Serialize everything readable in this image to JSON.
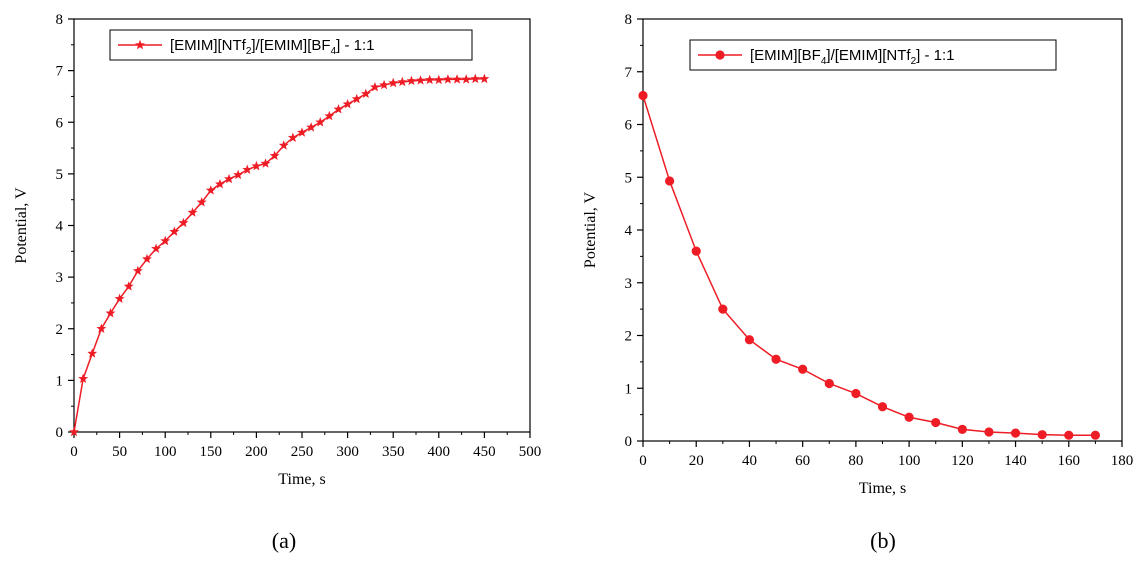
{
  "colors": {
    "series": "#ee1c25",
    "axis": "#000000",
    "background": "#ffffff"
  },
  "chart_data": [
    {
      "type": "line",
      "panel_label": "(a)",
      "xlabel": "Time, s",
      "ylabel": "Potential, V",
      "xlim": [
        0,
        500
      ],
      "ylim": [
        0,
        8
      ],
      "xticks": [
        "0",
        "50",
        "100",
        "150",
        "200",
        "250",
        "300",
        "350",
        "400",
        "450",
        "500"
      ],
      "yticks": [
        "0",
        "1",
        "2",
        "3",
        "4",
        "5",
        "6",
        "7",
        "8"
      ],
      "grid": false,
      "legend_position": "top",
      "marker": "star",
      "series": [
        {
          "name": "[EMIM][NTf2]/[EMIM][BF4] - 1:1",
          "legend_parts": {
            "p1": "[EMIM][NTf",
            "s1": "2",
            "p2": "]/[EMIM][BF",
            "s2": "4",
            "p3": "] - 1:1"
          },
          "x": [
            0,
            10,
            20,
            30,
            40,
            50,
            60,
            70,
            80,
            90,
            100,
            110,
            120,
            130,
            140,
            150,
            160,
            170,
            180,
            190,
            200,
            210,
            220,
            230,
            240,
            250,
            260,
            270,
            280,
            290,
            300,
            310,
            320,
            330,
            340,
            350,
            360,
            370,
            380,
            390,
            400,
            410,
            420,
            430,
            440,
            450
          ],
          "y": [
            0,
            1.03,
            1.52,
            2.0,
            2.3,
            2.58,
            2.82,
            3.12,
            3.35,
            3.55,
            3.7,
            3.88,
            4.05,
            4.25,
            4.45,
            4.68,
            4.8,
            4.9,
            4.98,
            5.08,
            5.15,
            5.2,
            5.35,
            5.55,
            5.7,
            5.8,
            5.9,
            6.0,
            6.12,
            6.25,
            6.35,
            6.45,
            6.55,
            6.68,
            6.72,
            6.76,
            6.78,
            6.8,
            6.81,
            6.82,
            6.82,
            6.83,
            6.83,
            6.83,
            6.84,
            6.84
          ]
        }
      ]
    },
    {
      "type": "line",
      "panel_label": "(b)",
      "xlabel": "Time, s",
      "ylabel": "Potential, V",
      "xlim": [
        0,
        180
      ],
      "ylim": [
        0,
        8
      ],
      "xticks": [
        "0",
        "20",
        "40",
        "60",
        "80",
        "100",
        "120",
        "140",
        "160",
        "180"
      ],
      "yticks": [
        "0",
        "1",
        "2",
        "3",
        "4",
        "5",
        "6",
        "7",
        "8"
      ],
      "grid": false,
      "legend_position": "top",
      "marker": "circle",
      "series": [
        {
          "name": "[EMIM][BF4]/[EMIM][NTf2] - 1:1",
          "legend_parts": {
            "p1": "[EMIM][BF",
            "s1": "4",
            "p2": "]/[EMIM][NTf",
            "s2": "2",
            "p3": "] - 1:1"
          },
          "x": [
            0,
            10,
            20,
            30,
            40,
            50,
            60,
            70,
            80,
            90,
            100,
            110,
            120,
            130,
            140,
            150,
            160,
            170
          ],
          "y": [
            6.55,
            4.93,
            3.6,
            2.5,
            1.92,
            1.55,
            1.36,
            1.09,
            0.9,
            0.65,
            0.45,
            0.35,
            0.22,
            0.17,
            0.15,
            0.12,
            0.11,
            0.11
          ]
        }
      ]
    }
  ]
}
